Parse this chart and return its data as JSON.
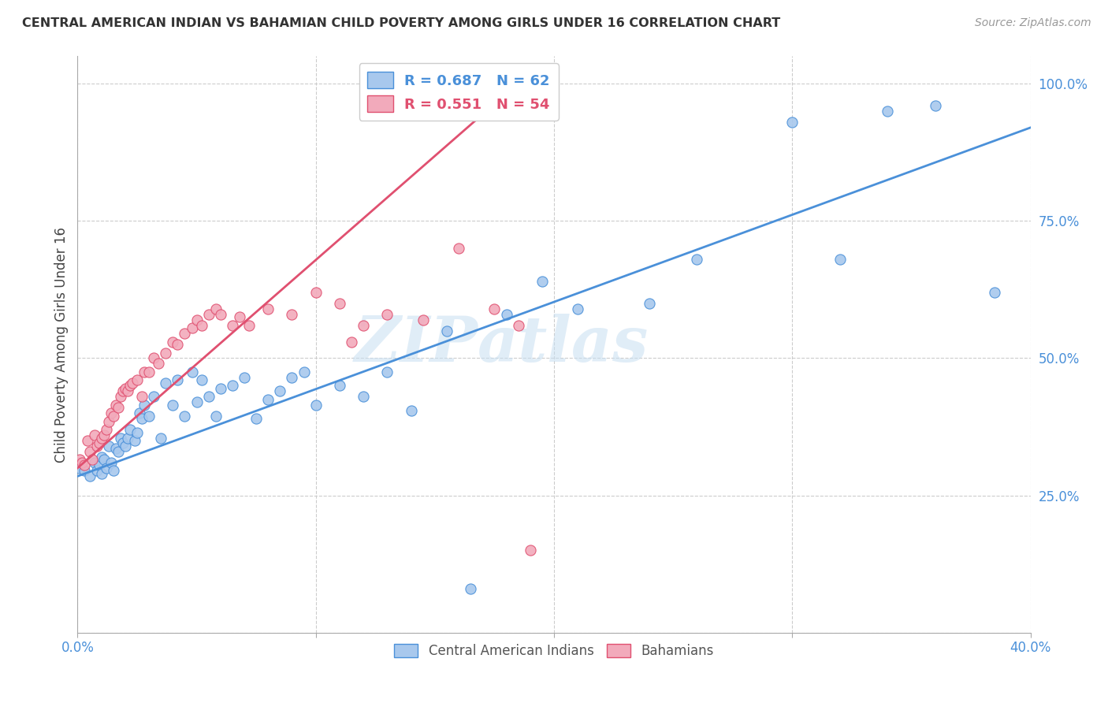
{
  "title": "CENTRAL AMERICAN INDIAN VS BAHAMIAN CHILD POVERTY AMONG GIRLS UNDER 16 CORRELATION CHART",
  "source": "Source: ZipAtlas.com",
  "ylabel": "Child Poverty Among Girls Under 16",
  "color_blue": "#A8C8ED",
  "color_pink": "#F2AABB",
  "line_color_blue": "#4A90D9",
  "line_color_pink": "#E05070",
  "background_color": "#FFFFFF",
  "watermark_zip": "ZIP",
  "watermark_atlas": "atlas",
  "xlim": [
    0.0,
    0.4
  ],
  "ylim": [
    0.0,
    1.05
  ],
  "x_ticks": [
    0.0,
    0.1,
    0.2,
    0.3,
    0.4
  ],
  "y_ticks": [
    0.0,
    0.25,
    0.5,
    0.75,
    1.0
  ],
  "blue_scatter_x": [
    0.001,
    0.003,
    0.005,
    0.007,
    0.008,
    0.009,
    0.01,
    0.01,
    0.011,
    0.012,
    0.013,
    0.014,
    0.015,
    0.016,
    0.017,
    0.018,
    0.019,
    0.02,
    0.021,
    0.022,
    0.024,
    0.025,
    0.026,
    0.027,
    0.028,
    0.03,
    0.032,
    0.035,
    0.037,
    0.04,
    0.042,
    0.045,
    0.048,
    0.05,
    0.052,
    0.055,
    0.058,
    0.06,
    0.065,
    0.07,
    0.075,
    0.08,
    0.085,
    0.09,
    0.095,
    0.1,
    0.11,
    0.12,
    0.13,
    0.14,
    0.155,
    0.165,
    0.18,
    0.195,
    0.21,
    0.24,
    0.26,
    0.3,
    0.32,
    0.34,
    0.36,
    0.385
  ],
  "blue_scatter_y": [
    0.3,
    0.295,
    0.285,
    0.31,
    0.295,
    0.305,
    0.29,
    0.32,
    0.315,
    0.3,
    0.34,
    0.31,
    0.295,
    0.335,
    0.33,
    0.355,
    0.345,
    0.34,
    0.355,
    0.37,
    0.35,
    0.365,
    0.4,
    0.39,
    0.415,
    0.395,
    0.43,
    0.355,
    0.455,
    0.415,
    0.46,
    0.395,
    0.475,
    0.42,
    0.46,
    0.43,
    0.395,
    0.445,
    0.45,
    0.465,
    0.39,
    0.425,
    0.44,
    0.465,
    0.475,
    0.415,
    0.45,
    0.43,
    0.475,
    0.405,
    0.55,
    0.08,
    0.58,
    0.64,
    0.59,
    0.6,
    0.68,
    0.93,
    0.68,
    0.95,
    0.96,
    0.62
  ],
  "pink_scatter_x": [
    0.001,
    0.002,
    0.003,
    0.004,
    0.005,
    0.006,
    0.007,
    0.008,
    0.009,
    0.01,
    0.011,
    0.012,
    0.013,
    0.014,
    0.015,
    0.016,
    0.017,
    0.018,
    0.019,
    0.02,
    0.021,
    0.022,
    0.023,
    0.025,
    0.027,
    0.028,
    0.03,
    0.032,
    0.034,
    0.037,
    0.04,
    0.042,
    0.045,
    0.048,
    0.05,
    0.052,
    0.055,
    0.058,
    0.06,
    0.065,
    0.068,
    0.072,
    0.08,
    0.09,
    0.1,
    0.11,
    0.12,
    0.13,
    0.145,
    0.16,
    0.175,
    0.185,
    0.19,
    0.115
  ],
  "pink_scatter_y": [
    0.315,
    0.31,
    0.305,
    0.35,
    0.33,
    0.315,
    0.36,
    0.34,
    0.345,
    0.355,
    0.36,
    0.37,
    0.385,
    0.4,
    0.395,
    0.415,
    0.41,
    0.43,
    0.44,
    0.445,
    0.44,
    0.45,
    0.455,
    0.46,
    0.43,
    0.475,
    0.475,
    0.5,
    0.49,
    0.51,
    0.53,
    0.525,
    0.545,
    0.555,
    0.57,
    0.56,
    0.58,
    0.59,
    0.58,
    0.56,
    0.575,
    0.56,
    0.59,
    0.58,
    0.62,
    0.6,
    0.56,
    0.58,
    0.57,
    0.7,
    0.59,
    0.56,
    0.15,
    0.53
  ],
  "blue_line": {
    "x0": 0.0,
    "y0": 0.285,
    "x1": 0.4,
    "y1": 0.92
  },
  "pink_line": {
    "x0": 0.0,
    "y0": 0.3,
    "x1": 0.19,
    "y1": 1.02
  }
}
